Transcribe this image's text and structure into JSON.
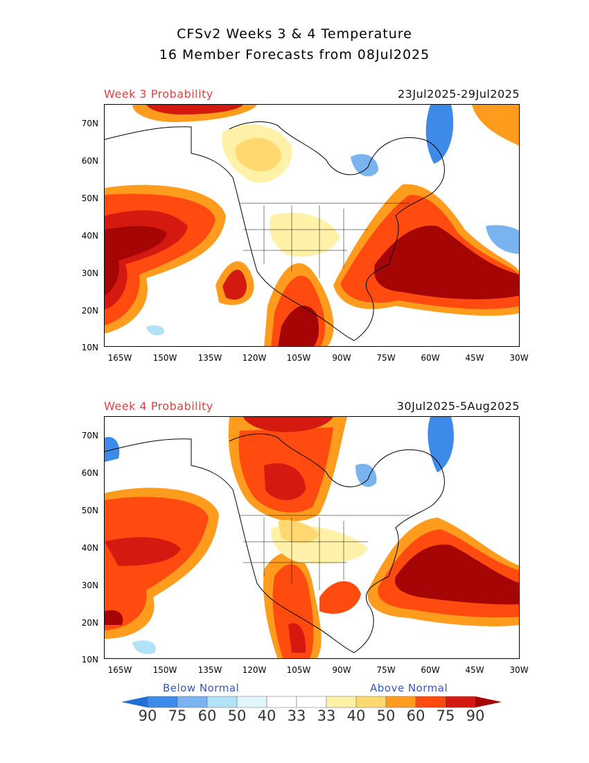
{
  "header": {
    "title_line1": "CFSv2 Weeks 3 & 4 Temperature",
    "title_line2": "16 Member Forecasts from 08Jul2025"
  },
  "panels": [
    {
      "label": "Week 3 Probability",
      "dates": "23Jul2025-29Jul2025"
    },
    {
      "label": "Week 4 Probability",
      "dates": "30Jul2025-5Aug2025"
    }
  ],
  "axes": {
    "lat_labels": [
      "70N",
      "60N",
      "50N",
      "40N",
      "30N",
      "20N",
      "10N"
    ],
    "lon_labels": [
      "165W",
      "150W",
      "135W",
      "120W",
      "105W",
      "90W",
      "75W",
      "60W",
      "45W",
      "30W"
    ]
  },
  "colorbar": {
    "below_label": "Below Normal",
    "above_label": "Above Normal",
    "numbers": [
      "90",
      "75",
      "60",
      "50",
      "40",
      "33",
      "33",
      "40",
      "50",
      "60",
      "75",
      "90"
    ],
    "colors": [
      "#1f6fd6",
      "#3d8ae8",
      "#7ab4f0",
      "#b2e2f6",
      "#e0f6fc",
      "#ffffff",
      "#ffffff",
      "#fff2a8",
      "#ffd970",
      "#ff9c1e",
      "#ff4b0f",
      "#d41a10",
      "#a50505"
    ]
  }
}
